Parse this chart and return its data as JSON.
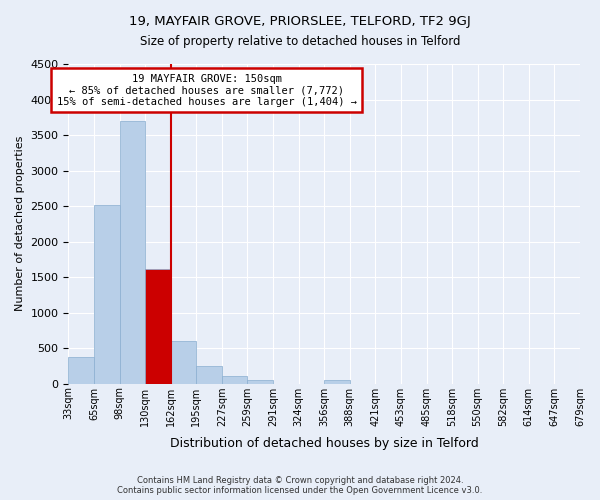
{
  "title1": "19, MAYFAIR GROVE, PRIORSLEE, TELFORD, TF2 9GJ",
  "title2": "Size of property relative to detached houses in Telford",
  "xlabel": "Distribution of detached houses by size in Telford",
  "ylabel": "Number of detached properties",
  "bin_labels": [
    "33sqm",
    "65sqm",
    "98sqm",
    "130sqm",
    "162sqm",
    "195sqm",
    "227sqm",
    "259sqm",
    "291sqm",
    "324sqm",
    "356sqm",
    "388sqm",
    "421sqm",
    "453sqm",
    "485sqm",
    "518sqm",
    "550sqm",
    "582sqm",
    "614sqm",
    "647sqm",
    "679sqm"
  ],
  "values": [
    380,
    2510,
    3700,
    1620,
    600,
    245,
    110,
    55,
    0,
    0,
    55,
    0,
    0,
    0,
    0,
    0,
    0,
    0,
    0,
    0
  ],
  "highlight_bin_index": 3,
  "bar_color": "#b8cfe8",
  "bar_edge_color": "#8aaed0",
  "highlight_color": "#cc0000",
  "ylim": [
    0,
    4500
  ],
  "yticks": [
    0,
    500,
    1000,
    1500,
    2000,
    2500,
    3000,
    3500,
    4000,
    4500
  ],
  "annotation_title": "19 MAYFAIR GROVE: 150sqm",
  "annotation_line1": "← 85% of detached houses are smaller (7,772)",
  "annotation_line2": "15% of semi-detached houses are larger (1,404) →",
  "annotation_box_color": "#ffffff",
  "annotation_box_edge": "#cc0000",
  "vline_bin_index": 3,
  "footer1": "Contains HM Land Registry data © Crown copyright and database right 2024.",
  "footer2": "Contains public sector information licensed under the Open Government Licence v3.0.",
  "bg_color": "#e8eef8"
}
